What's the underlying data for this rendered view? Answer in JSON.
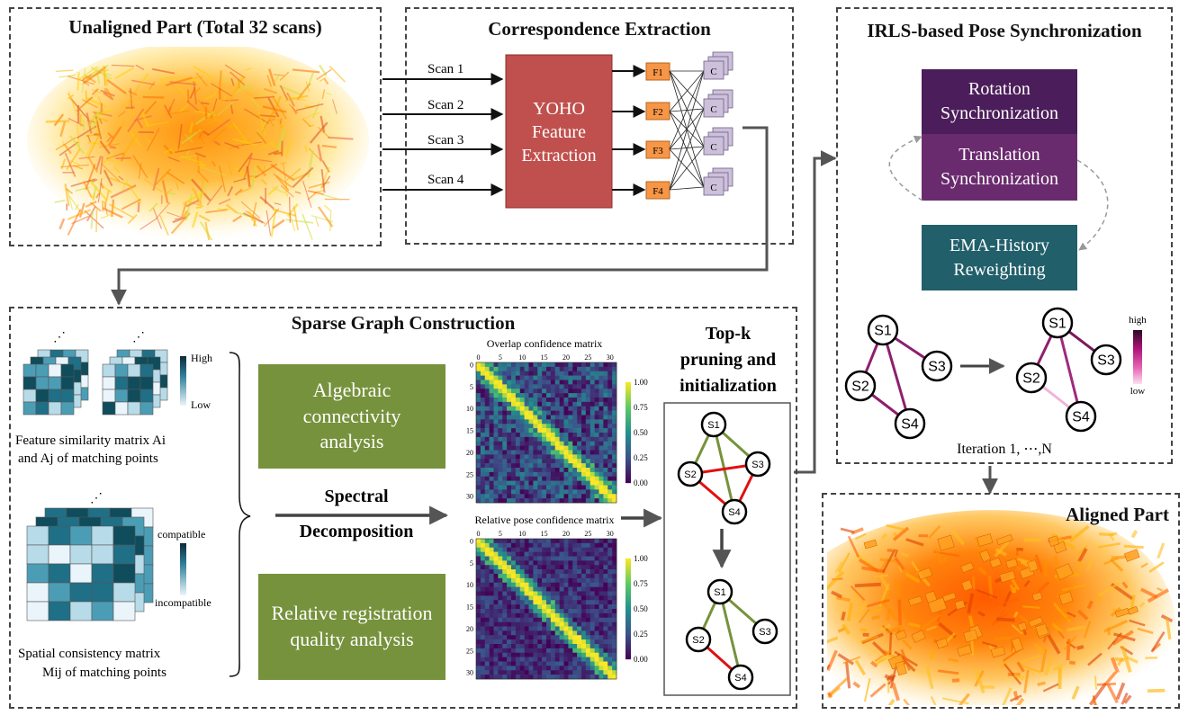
{
  "panels": {
    "unaligned_title": "Unaligned Part (Total 32 scans)",
    "correspondence_title": "Correspondence Extraction",
    "irls_title": "IRLS-based Pose Synchronization",
    "sparse_title": "Sparse Graph Construction",
    "aligned_title": "Aligned Part"
  },
  "correspondence": {
    "scans": [
      "Scan 1",
      "Scan 2",
      "Scan 3",
      "Scan 4"
    ],
    "yoho_label": "YOHO Feature Extraction",
    "yoho_lines": [
      "YOHO",
      "Feature",
      "Extraction"
    ],
    "features": [
      "F1",
      "F2",
      "F3",
      "F4"
    ],
    "corr_label": "C"
  },
  "irls": {
    "rotation_lines": [
      "Rotation",
      "Synchronization"
    ],
    "translation_lines": [
      "Translation",
      "Synchronization"
    ],
    "ema_lines": [
      "EMA-History",
      "Reweighting"
    ],
    "iteration": "Iteration 1, ⋯,N",
    "colorbar_high": "high",
    "colorbar_low": "low",
    "nodes": [
      "S1",
      "S2",
      "S3",
      "S4"
    ]
  },
  "sparse": {
    "high_label": "High",
    "low_label": "Low",
    "feature_caption_lines": [
      "Feature similarity matrix Ai",
      "and Aj of matching points"
    ],
    "compatible_label": "compatible",
    "incompatible_label": "incompatible",
    "spatial_caption_lines": [
      "Spatial consistency matrix",
      "Mij of matching points"
    ],
    "algebraic_lines": [
      "Algebraic",
      "connectivity",
      "analysis"
    ],
    "relative_lines": [
      "Relative registration",
      "quality analysis"
    ],
    "spectral_lines": [
      "Spectral",
      "Decomposition"
    ],
    "overlap_title": "Overlap confidence matrix",
    "relpose_title": "Relative pose confidence matrix",
    "x_ticks": [
      "0",
      "5",
      "10",
      "15",
      "20",
      "25",
      "30"
    ],
    "y_ticks": [
      "0",
      "5",
      "10",
      "15",
      "20",
      "25",
      "30"
    ],
    "colorbar_ticks": [
      "1.00",
      "0.75",
      "0.50",
      "0.25",
      "0.00"
    ],
    "topk_lines": [
      "Top-k",
      "pruning and",
      "initialization"
    ]
  },
  "colors": {
    "yoho": "#c0504d",
    "feature_box": "#f79646",
    "corr_box": "#ccc0da",
    "rotation": "#4b1d5a",
    "translation": "#6a2a6e",
    "ema": "#215f6a",
    "green_box": "#76923c",
    "edge_green": "#76923c",
    "edge_red": "#e01010",
    "edge_purple": "#8e1f6e"
  }
}
